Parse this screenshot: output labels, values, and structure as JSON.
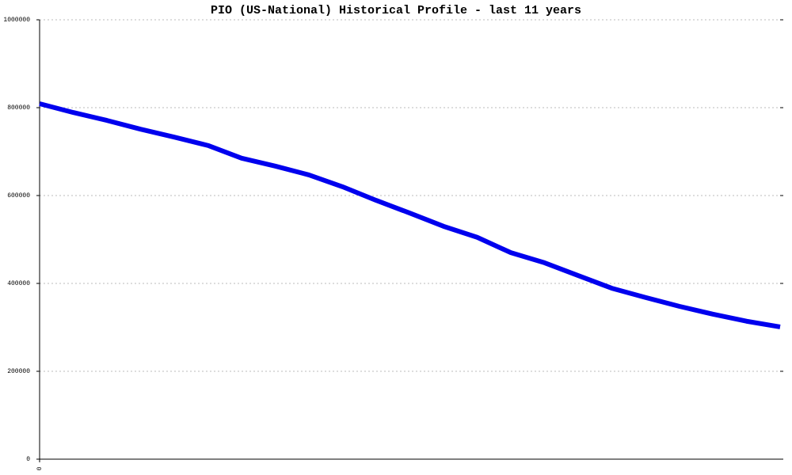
{
  "chart_data": {
    "type": "line",
    "title": "PIO (US-National) Historical Profile - last 11 years",
    "x": [
      0,
      1,
      2,
      3,
      4,
      5,
      6,
      7,
      8,
      9,
      10,
      11,
      12,
      13,
      14,
      15,
      16,
      17,
      18,
      19,
      20,
      21,
      22
    ],
    "series": [
      {
        "color": "#0000ee",
        "values": [
          809000,
          789000,
          771000,
          751000,
          733000,
          714000,
          685000,
          667000,
          647000,
          620000,
          589000,
          560000,
          530000,
          505000,
          470000,
          447000,
          418000,
          389000,
          368000,
          348000,
          330000,
          314000,
          301000
        ]
      }
    ],
    "xlim": [
      0,
      22
    ],
    "xticks": [
      0
    ],
    "ylim": [
      0,
      1000000
    ],
    "yticks": [
      0,
      200000,
      400000,
      600000,
      800000,
      1000000
    ],
    "grid": true
  }
}
